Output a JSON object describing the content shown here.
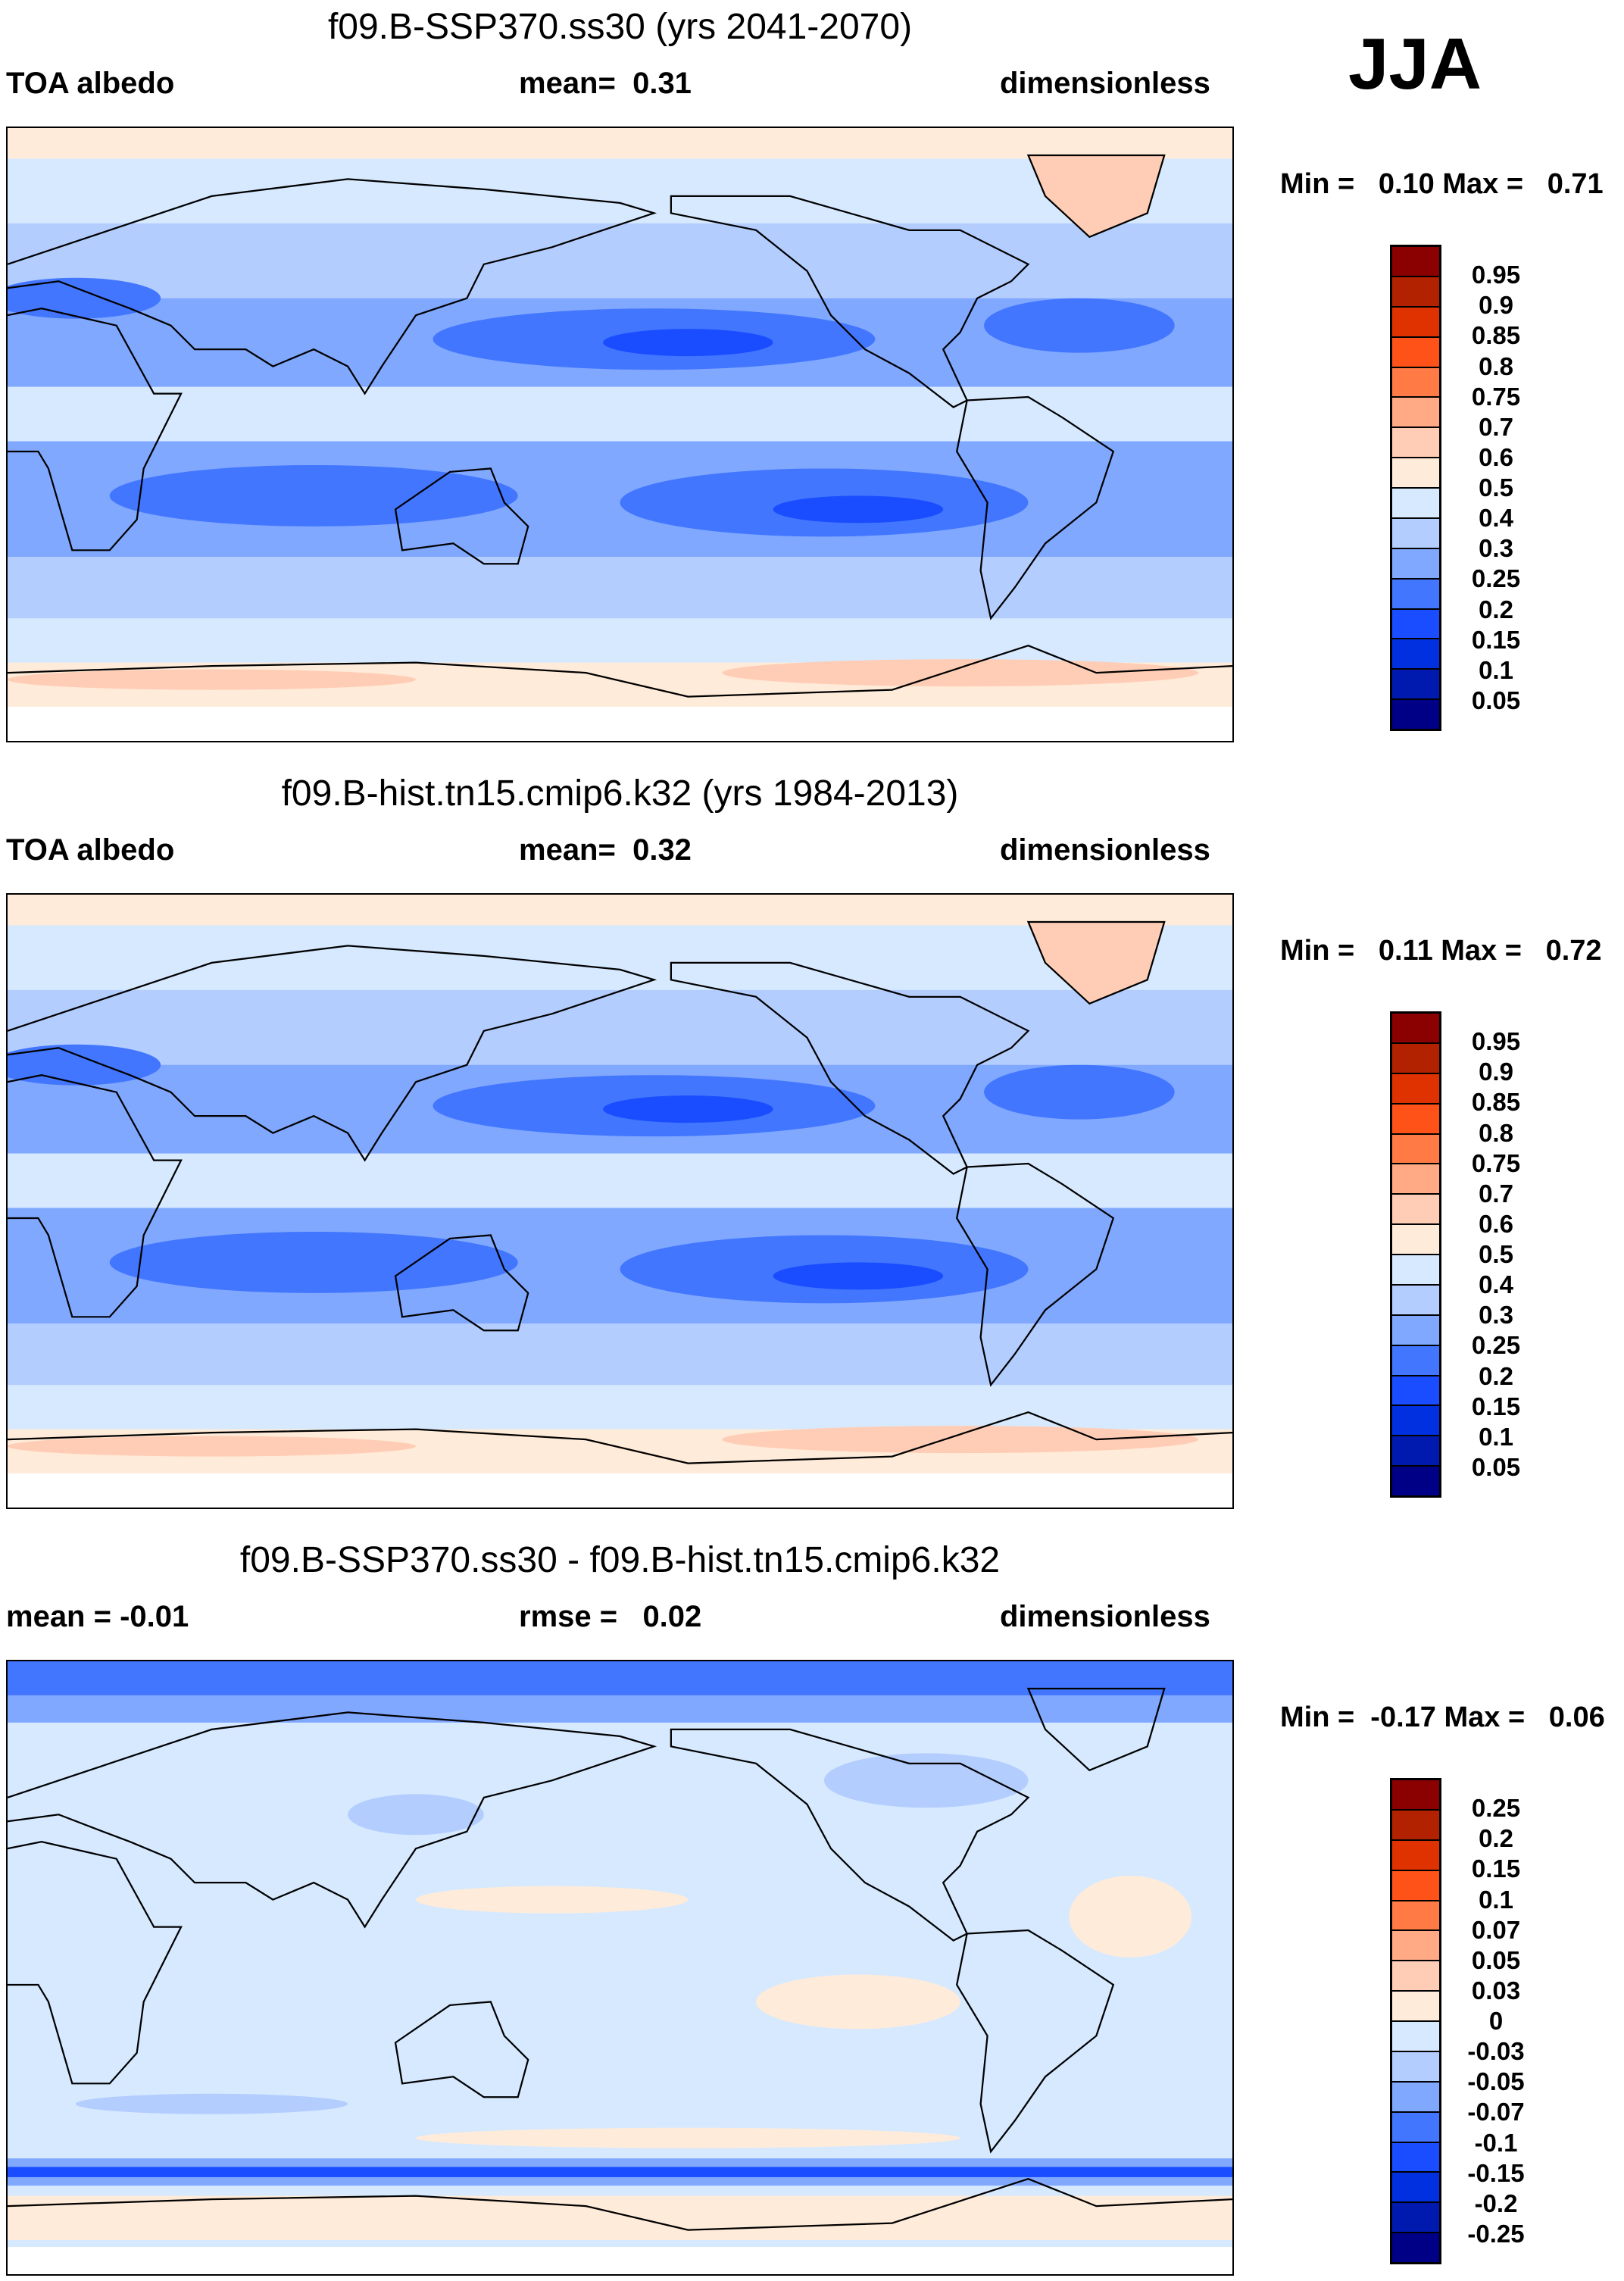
{
  "season": "JJA",
  "chart_data": [
    {
      "type": "heatmap",
      "title": "f09.B-SSP370.ss30 (yrs 2041-2070)",
      "left_label": "TOA albedo",
      "center_label": "mean=  0.31",
      "right_label": "dimensionless",
      "min_max": "Min =   0.10 Max =   0.71",
      "colorbar_levels": [
        "0.95",
        "0.9",
        "0.85",
        "0.8",
        "0.75",
        "0.7",
        "0.6",
        "0.5",
        "0.4",
        "0.3",
        "0.25",
        "0.2",
        "0.15",
        "0.1",
        "0.05"
      ]
    },
    {
      "type": "heatmap",
      "title": "f09.B-hist.tn15.cmip6.k32 (yrs 1984-2013)",
      "left_label": "TOA albedo",
      "center_label": "mean=  0.32",
      "right_label": "dimensionless",
      "min_max": "Min =   0.11 Max =   0.72",
      "colorbar_levels": [
        "0.95",
        "0.9",
        "0.85",
        "0.8",
        "0.75",
        "0.7",
        "0.6",
        "0.5",
        "0.4",
        "0.3",
        "0.25",
        "0.2",
        "0.15",
        "0.1",
        "0.05"
      ]
    },
    {
      "type": "heatmap",
      "title": "f09.B-SSP370.ss30 - f09.B-hist.tn15.cmip6.k32",
      "left_label": "mean =  -0.01",
      "center_label": "rmse =   0.02",
      "right_label": "dimensionless",
      "min_max": "Min =  -0.17 Max =   0.06",
      "colorbar_levels": [
        "0.25",
        "0.2",
        "0.15",
        "0.1",
        "0.07",
        "0.05",
        "0.03",
        "0",
        "-0.03",
        "-0.05",
        "-0.07",
        "-0.1",
        "-0.15",
        "-0.2",
        "-0.25"
      ]
    }
  ],
  "colorbar_colors": [
    "#8b0000",
    "#b22200",
    "#e03200",
    "#ff5219",
    "#ff7a45",
    "#ffaa85",
    "#ffcdb5",
    "#ffebd9",
    "#d6e9ff",
    "#b4cdff",
    "#80a8ff",
    "#4276ff",
    "#1a4dff",
    "#0030e0",
    "#001ab0",
    "#000087"
  ]
}
